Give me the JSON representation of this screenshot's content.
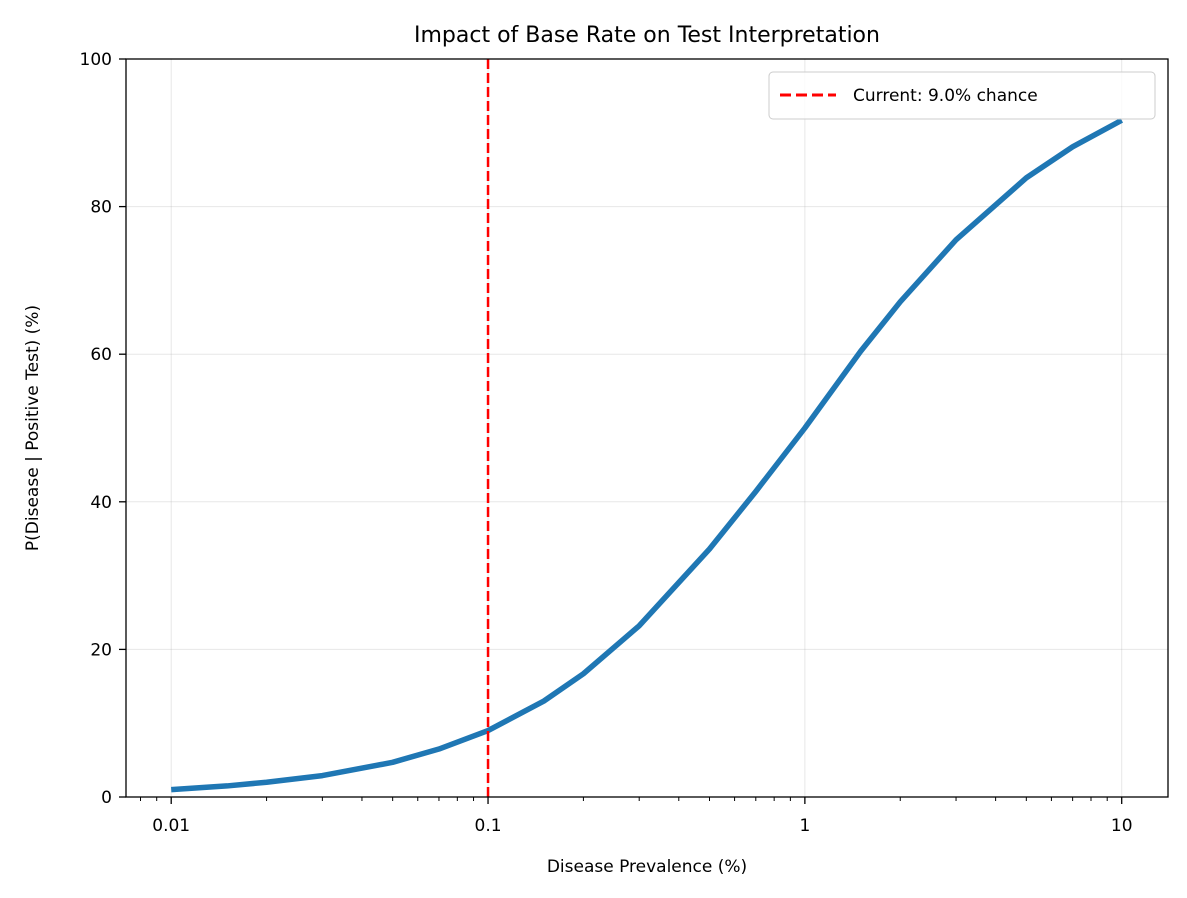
{
  "chart_data": {
    "type": "line",
    "title": "Impact of Base Rate on Test Interpretation",
    "xlabel": "Disease Prevalence (%)",
    "ylabel": "P(Disease | Positive Test) (%)",
    "xscale": "log",
    "xlim": [
      0.0072,
      14
    ],
    "ylim": [
      0,
      100
    ],
    "grid": true,
    "legend_position": "top-right",
    "x_ticks": [
      {
        "value": 0.01,
        "label": "0.01"
      },
      {
        "value": 0.1,
        "label": "0.1"
      },
      {
        "value": 1,
        "label": "1"
      },
      {
        "value": 10,
        "label": "10"
      }
    ],
    "y_ticks": [
      {
        "value": 0,
        "label": "0"
      },
      {
        "value": 20,
        "label": "20"
      },
      {
        "value": 40,
        "label": "40"
      },
      {
        "value": 60,
        "label": "60"
      },
      {
        "value": 80,
        "label": "80"
      },
      {
        "value": 100,
        "label": "100"
      }
    ],
    "series": [
      {
        "color": "#1f77b4",
        "x": [
          0.01,
          0.015,
          0.02,
          0.03,
          0.05,
          0.07,
          0.1,
          0.15,
          0.2,
          0.3,
          0.5,
          0.7,
          1,
          1.5,
          2,
          3,
          5,
          7,
          10
        ],
        "y": [
          1.0,
          1.5,
          2.0,
          2.9,
          4.7,
          6.5,
          9.0,
          13.0,
          16.7,
          23.2,
          33.6,
          41.4,
          50.0,
          60.4,
          67.1,
          75.5,
          83.9,
          88.1,
          91.7
        ]
      }
    ],
    "reference_line": {
      "orientation": "vertical",
      "x": 0.1,
      "color": "#ff0000",
      "style": "dashed",
      "name": "Current: 9.0% chance"
    },
    "legend": [
      {
        "label": "Current: 9.0% chance",
        "color": "#ff0000",
        "style": "dashed"
      }
    ]
  }
}
